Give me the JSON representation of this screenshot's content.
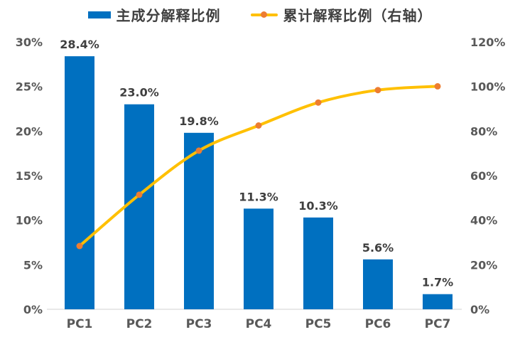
{
  "legend": {
    "bar_label": "主成分解释比例",
    "line_label": "累计解释比例（右轴）"
  },
  "colors": {
    "bar": "#0070C0",
    "line": "#FFC000",
    "marker": "#ED7D31",
    "axis_text": "#595959",
    "data_label": "#3F3F3F",
    "axis_line": "#D9D9D9",
    "background": "#FFFFFF"
  },
  "chart_data": {
    "type": "bar",
    "subtype": "pareto-combo",
    "title": "",
    "categories": [
      "PC1",
      "PC2",
      "PC3",
      "PC4",
      "PC5",
      "PC6",
      "PC7"
    ],
    "series": [
      {
        "name": "主成分解释比例",
        "type": "bar",
        "axis": "left",
        "values": [
          28.4,
          23.0,
          19.8,
          11.3,
          10.3,
          5.6,
          1.7
        ],
        "data_labels": [
          "28.4%",
          "23.0%",
          "19.8%",
          "11.3%",
          "10.3%",
          "5.6%",
          "1.7%"
        ]
      },
      {
        "name": "累计解释比例（右轴）",
        "type": "line",
        "axis": "right",
        "smooth": true,
        "values": [
          28.4,
          51.4,
          71.2,
          82.5,
          92.8,
          98.4,
          100.1
        ]
      }
    ],
    "left_axis": {
      "min": 0,
      "max": 30,
      "step": 5,
      "tick_labels": [
        "0%",
        "5%",
        "10%",
        "15%",
        "20%",
        "25%",
        "30%"
      ]
    },
    "right_axis": {
      "min": 0,
      "max": 120,
      "step": 20,
      "tick_labels": [
        "0%",
        "20%",
        "40%",
        "60%",
        "80%",
        "100%",
        "120%"
      ]
    },
    "grid": false,
    "legend_position": "top"
  }
}
